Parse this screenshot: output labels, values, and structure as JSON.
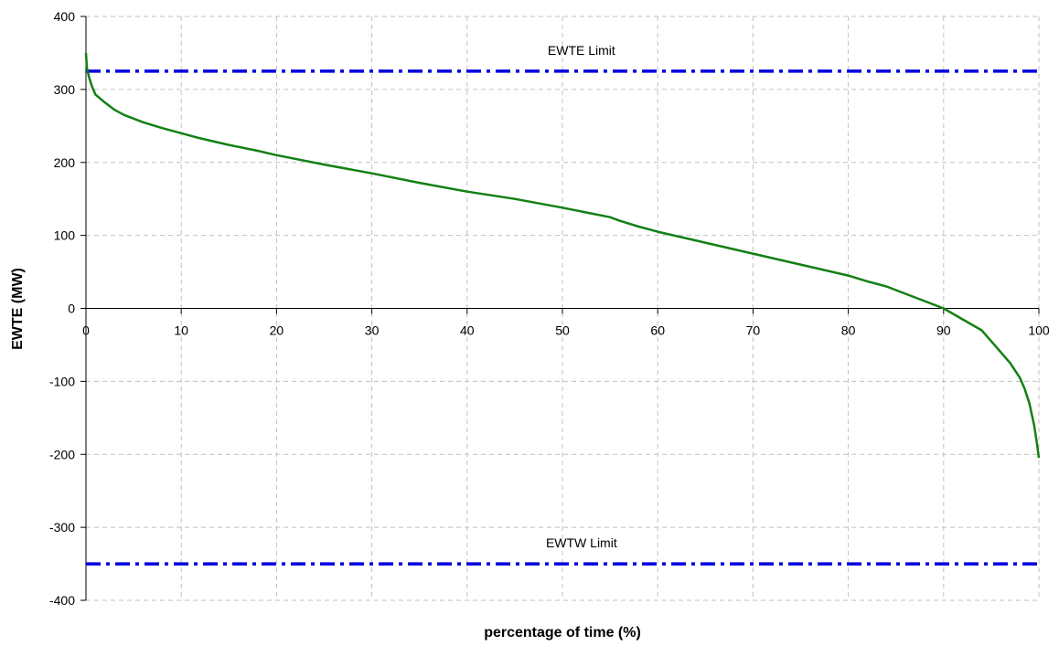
{
  "chart_data": {
    "type": "line",
    "title": "",
    "xlabel": "percentage of time (%)",
    "ylabel": "EWTE (MW)",
    "xlim": [
      0,
      100
    ],
    "ylim": [
      -400,
      400
    ],
    "xticks": [
      0,
      10,
      20,
      30,
      40,
      50,
      60,
      70,
      80,
      90,
      100
    ],
    "yticks": [
      -400,
      -300,
      -200,
      -100,
      0,
      100,
      200,
      300,
      400
    ],
    "grid": true,
    "legend": "none",
    "colors": {
      "series": "#138013",
      "limits": "#0000e0",
      "grid": "#c0c0c0",
      "axis": "#000000"
    },
    "series": [
      {
        "x": [
          0,
          0.1,
          0.3,
          0.6,
          1,
          2,
          3,
          4,
          5,
          6,
          8,
          10,
          12,
          15,
          18,
          20,
          25,
          30,
          35,
          40,
          45,
          50,
          55,
          56,
          58,
          60,
          65,
          70,
          75,
          80,
          82,
          84,
          86,
          88,
          90,
          92,
          94,
          95,
          96,
          97,
          98,
          98.5,
          99,
          99.5,
          99.8,
          100
        ],
        "y": [
          350,
          330,
          318,
          305,
          293,
          282,
          272,
          265,
          260,
          255,
          247,
          240,
          233,
          224,
          216,
          210,
          197,
          185,
          172,
          160,
          150,
          138,
          125,
          120,
          112,
          105,
          90,
          75,
          60,
          45,
          37,
          30,
          20,
          10,
          0,
          -15,
          -30,
          -45,
          -60,
          -75,
          -95,
          -110,
          -130,
          -160,
          -185,
          -205
        ]
      }
    ],
    "reference_lines": [
      {
        "name": "EWTE Limit",
        "y": 325
      },
      {
        "name": "EWTW Limit",
        "y": -350
      }
    ]
  }
}
